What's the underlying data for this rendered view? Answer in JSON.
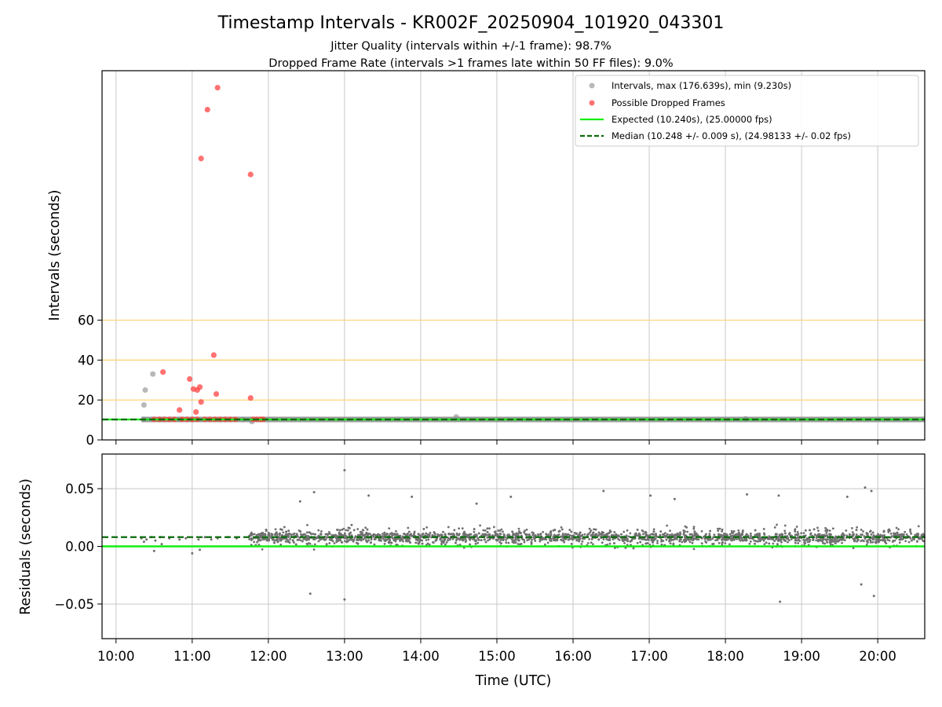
{
  "figure": {
    "title": "Timestamp Intervals - KR002F_20250904_101920_043301",
    "subtitle_1": "Jitter Quality (intervals within +/-1 frame): 98.7%",
    "subtitle_2": "Dropped Frame Rate (intervals >1 frames late within 50 FF files): 9.0%"
  },
  "chart_data": [
    {
      "type": "scatter",
      "panel": "top",
      "ylabel": "Intervals (seconds)",
      "xlabel": "",
      "x_range": [
        "09:49",
        "20:37"
      ],
      "ylim": [
        0,
        185
      ],
      "yticks": [
        0,
        20,
        40,
        60
      ],
      "xticks": [
        "10:00",
        "11:00",
        "12:00",
        "13:00",
        "14:00",
        "15:00",
        "16:00",
        "17:00",
        "18:00",
        "19:00",
        "20:00"
      ],
      "grid": "vertical",
      "reference_lines": {
        "values": [
          20,
          40,
          60
        ],
        "color": "#ffd36b"
      },
      "legend_position": "top-right",
      "series": [
        {
          "name": "Intervals, max (176.639s), min (9.230s)",
          "kind": "scatter",
          "color": "#888888",
          "points": [
            [
              "10:22",
              17.5
            ],
            [
              "10:23",
              25
            ],
            [
              "10:29",
              33
            ],
            [
              "10:22",
              10.3
            ],
            [
              "10:35",
              10.3
            ],
            [
              "10:50",
              10.3
            ],
            [
              "11:00",
              10.3
            ],
            [
              "11:40",
              10.3
            ],
            [
              "11:47",
              9.2
            ],
            [
              "14:28",
              11.5
            ],
            [
              "18:16",
              10.6
            ]
          ],
          "dense_band": {
            "from": "10:20",
            "to": "20:37",
            "value": 10.25
          }
        },
        {
          "name": "Possible Dropped Frames",
          "kind": "scatter",
          "color": "#ff3b3b",
          "points": [
            [
              "11:20",
              176.5
            ],
            [
              "11:12",
              165.5
            ],
            [
              "11:07",
              141
            ],
            [
              "11:46",
              133
            ],
            [
              "11:17",
              42.5
            ],
            [
              "10:37",
              34
            ],
            [
              "10:58",
              30.5
            ],
            [
              "11:01",
              25.5
            ],
            [
              "11:04",
              25
            ],
            [
              "11:06",
              26.5
            ],
            [
              "11:19",
              23
            ],
            [
              "11:07",
              19
            ],
            [
              "11:46",
              21
            ],
            [
              "10:50",
              15
            ],
            [
              "11:03",
              14
            ],
            [
              "10:30",
              10.3
            ],
            [
              "10:34",
              10.3
            ],
            [
              "10:38",
              10.3
            ],
            [
              "10:42",
              10.3
            ],
            [
              "10:46",
              10.3
            ],
            [
              "10:52",
              10.3
            ],
            [
              "10:56",
              10.3
            ],
            [
              "11:00",
              10.3
            ],
            [
              "11:04",
              10.3
            ],
            [
              "11:10",
              10.3
            ],
            [
              "11:14",
              10.3
            ],
            [
              "11:18",
              10.3
            ],
            [
              "11:22",
              10.3
            ],
            [
              "11:26",
              10.3
            ],
            [
              "11:30",
              10.3
            ],
            [
              "11:34",
              10.3
            ],
            [
              "11:48",
              10.3
            ],
            [
              "11:51",
              10.3
            ],
            [
              "11:54",
              10.3
            ],
            [
              "11:56",
              10.3
            ]
          ]
        },
        {
          "name": "Expected (10.240s), (25.00000 fps)",
          "kind": "line",
          "style": "solid",
          "color": "#11ee11",
          "value": 10.24
        },
        {
          "name": "Median (10.248 +/- 0.009 s), (24.98133 +/- 0.02 fps)",
          "kind": "line",
          "style": "dashed",
          "color": "#0a6b0a",
          "value": 10.248
        }
      ]
    },
    {
      "type": "scatter",
      "panel": "bottom",
      "ylabel": "Residuals (seconds)",
      "xlabel": "Time (UTC)",
      "x_range": [
        "09:49",
        "20:37"
      ],
      "ylim": [
        -0.08,
        0.08
      ],
      "yticks": [
        0.05,
        0.0,
        -0.05
      ],
      "ytick_labels": [
        "0.05",
        "0.00",
        "−0.05"
      ],
      "xticks": [
        "10:00",
        "11:00",
        "12:00",
        "13:00",
        "14:00",
        "15:00",
        "16:00",
        "17:00",
        "18:00",
        "19:00",
        "20:00"
      ],
      "grid": "both",
      "series": [
        {
          "kind": "scatter",
          "color": "#707070",
          "points": [
            [
              "10:20",
              0.007
            ],
            [
              "10:24",
              0.006
            ],
            [
              "10:28",
              0.008
            ],
            [
              "10:31",
              0.005
            ],
            [
              "10:35",
              0.008
            ],
            [
              "10:42",
              0.007
            ],
            [
              "10:50",
              0.006
            ],
            [
              "10:55",
              0.007
            ],
            [
              "11:05",
              0.006
            ],
            [
              "11:10",
              0.008
            ],
            [
              "11:15",
              0.006
            ],
            [
              "11:20",
              0.007
            ],
            [
              "11:28",
              0.008
            ],
            [
              "11:35",
              0.007
            ],
            [
              "11:45",
              0.009
            ],
            [
              "10:30",
              -0.004
            ],
            [
              "10:22",
              0.004
            ],
            [
              "11:00",
              -0.006
            ],
            [
              "11:06",
              -0.003
            ],
            [
              "10:36",
              0.002
            ],
            [
              "13:00",
              0.066
            ],
            [
              "13:00",
              -0.046
            ],
            [
              "19:50",
              0.051
            ],
            [
              "18:43",
              -0.048
            ],
            [
              "19:57",
              -0.043
            ],
            [
              "19:55",
              0.048
            ],
            [
              "19:47",
              -0.033
            ],
            [
              "12:36",
              0.047
            ],
            [
              "12:33",
              -0.041
            ],
            [
              "13:53",
              0.043
            ],
            [
              "16:24",
              0.048
            ],
            [
              "17:01",
              0.044
            ],
            [
              "17:20",
              0.041
            ],
            [
              "18:17",
              0.045
            ],
            [
              "18:42",
              0.044
            ],
            [
              "19:36",
              0.043
            ],
            [
              "15:11",
              0.043
            ],
            [
              "14:44",
              0.037
            ],
            [
              "12:25",
              0.039
            ],
            [
              "13:19",
              0.044
            ]
          ],
          "dense_band": {
            "from": "11:45",
            "to": "20:37",
            "center": 0.008,
            "spread": 0.012
          }
        },
        {
          "name": "Expected",
          "kind": "line",
          "style": "solid",
          "color": "#11ee11",
          "value": 0.0
        },
        {
          "name": "Median",
          "kind": "line",
          "style": "dashed",
          "color": "#0a6b0a",
          "value": 0.008
        }
      ]
    }
  ]
}
